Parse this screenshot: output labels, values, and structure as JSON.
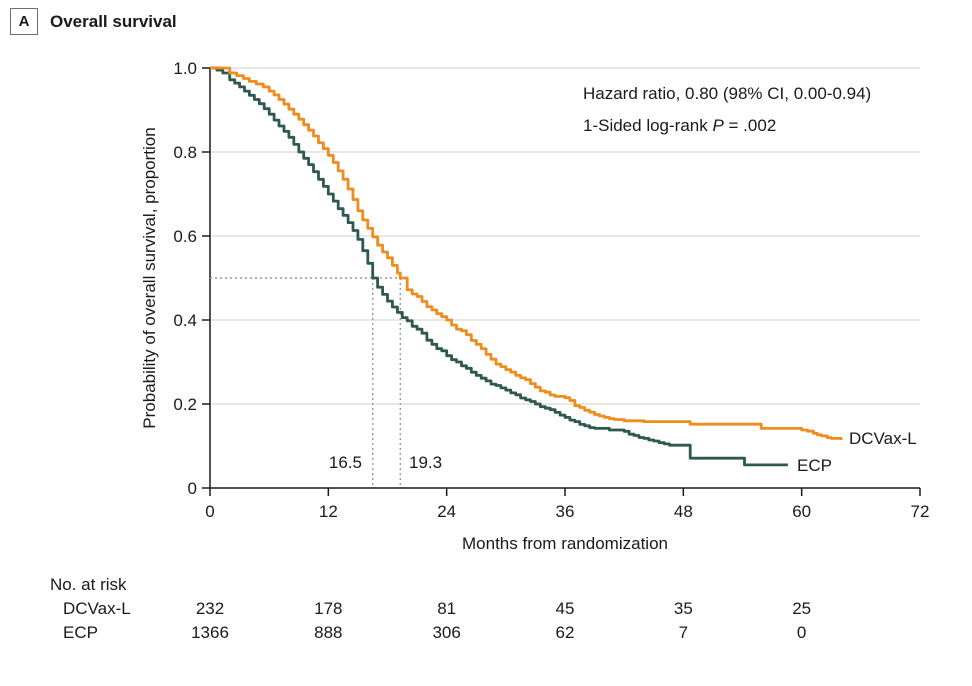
{
  "panel": {
    "label": "A",
    "title": "Overall survival"
  },
  "annotations": {
    "hazard_ratio": "Hazard ratio, 0.80 (98% CI, 0.00-0.94)",
    "logrank_prefix": "1-Sided log-rank ",
    "logrank_italic": "P",
    "logrank_suffix": " = .002"
  },
  "colors": {
    "dcvax": "#F08C1E",
    "ecp": "#2F5850",
    "grid": "#D9D9D9",
    "axis": "#1A1A1A",
    "dotted": "#999999"
  },
  "chart_data": {
    "type": "line",
    "subtype": "kaplan-meier-step",
    "title": "Overall survival",
    "xlabel": "Months from randomization",
    "ylabel": "Probability of overall survival, proportion",
    "xlim": [
      0,
      72
    ],
    "ylim": [
      0,
      1.0
    ],
    "x_ticks": [
      0,
      12,
      24,
      36,
      48,
      60,
      72
    ],
    "y_ticks": [
      0,
      0.2,
      0.4,
      0.6,
      0.8,
      1.0
    ],
    "y_tick_labels": [
      "0",
      "0.2",
      "0.4",
      "0.6",
      "0.8",
      "1.0"
    ],
    "grid": "horizontal",
    "legend_position": "end-of-curve labels",
    "median_guides": {
      "y": 0.5,
      "medians": [
        {
          "series": "ECP",
          "x": 16.5,
          "label": "16.5",
          "color": "#2F5850"
        },
        {
          "series": "DCVax-L",
          "x": 19.3,
          "label": "19.3",
          "color": "#F08C1E"
        }
      ]
    },
    "series": [
      {
        "name": "ECP",
        "end_label": "ECP",
        "color": "#2F5850",
        "median_months": 16.5,
        "anchors": [
          [
            0,
            1.0
          ],
          [
            0.7,
            0.995
          ],
          [
            1.3,
            0.988
          ],
          [
            2,
            0.972
          ],
          [
            2.5,
            0.964
          ],
          [
            3,
            0.955
          ],
          [
            3.5,
            0.945
          ],
          [
            4,
            0.935
          ],
          [
            4.5,
            0.925
          ],
          [
            5,
            0.915
          ],
          [
            5.5,
            0.903
          ],
          [
            6,
            0.89
          ],
          [
            6.5,
            0.876
          ],
          [
            7,
            0.862
          ],
          [
            7.5,
            0.849
          ],
          [
            8,
            0.835
          ],
          [
            8.5,
            0.818
          ],
          [
            9,
            0.8
          ],
          [
            9.5,
            0.785
          ],
          [
            10,
            0.77
          ],
          [
            10.5,
            0.753
          ],
          [
            11,
            0.735
          ],
          [
            11.5,
            0.718
          ],
          [
            12,
            0.7
          ],
          [
            12.5,
            0.683
          ],
          [
            13,
            0.665
          ],
          [
            13.5,
            0.649
          ],
          [
            14,
            0.632
          ],
          [
            14.5,
            0.613
          ],
          [
            15,
            0.592
          ],
          [
            15.5,
            0.565
          ],
          [
            16,
            0.535
          ],
          [
            16.5,
            0.5
          ],
          [
            17,
            0.478
          ],
          [
            17.5,
            0.461
          ],
          [
            18,
            0.445
          ],
          [
            18.5,
            0.431
          ],
          [
            19,
            0.418
          ],
          [
            20,
            0.398
          ],
          [
            21,
            0.378
          ],
          [
            22,
            0.352
          ],
          [
            23,
            0.332
          ],
          [
            24,
            0.315
          ],
          [
            25,
            0.3
          ],
          [
            26,
            0.285
          ],
          [
            27,
            0.268
          ],
          [
            28,
            0.255
          ],
          [
            29,
            0.244
          ],
          [
            30,
            0.233
          ],
          [
            31,
            0.222
          ],
          [
            32,
            0.21
          ],
          [
            33,
            0.2
          ],
          [
            34,
            0.19
          ],
          [
            35,
            0.18
          ],
          [
            36,
            0.168
          ],
          [
            37,
            0.158
          ],
          [
            38,
            0.148
          ],
          [
            39,
            0.142
          ],
          [
            40.5,
            0.138
          ],
          [
            42,
            0.135
          ],
          [
            43,
            0.125
          ],
          [
            44,
            0.118
          ],
          [
            45,
            0.112
          ],
          [
            46.6,
            0.102
          ],
          [
            48.5,
            0.102
          ],
          [
            48.7,
            0.071
          ],
          [
            54.0,
            0.071
          ],
          [
            54.2,
            0.055
          ],
          [
            58.6,
            0.055
          ]
        ]
      },
      {
        "name": "DCVax-L",
        "end_label": "DCVax-L",
        "color": "#F08C1E",
        "median_months": 19.3,
        "anchors": [
          [
            0,
            1.0
          ],
          [
            1.6,
            1.0
          ],
          [
            2,
            0.988
          ],
          [
            2.7,
            0.982
          ],
          [
            3.4,
            0.975
          ],
          [
            4,
            0.968
          ],
          [
            4.7,
            0.962
          ],
          [
            5.4,
            0.955
          ],
          [
            6,
            0.945
          ],
          [
            6.5,
            0.936
          ],
          [
            7,
            0.925
          ],
          [
            7.5,
            0.914
          ],
          [
            8,
            0.902
          ],
          [
            8.5,
            0.89
          ],
          [
            9,
            0.878
          ],
          [
            9.5,
            0.865
          ],
          [
            10,
            0.852
          ],
          [
            10.5,
            0.838
          ],
          [
            11,
            0.822
          ],
          [
            11.5,
            0.808
          ],
          [
            12,
            0.792
          ],
          [
            12.5,
            0.775
          ],
          [
            13,
            0.755
          ],
          [
            13.5,
            0.735
          ],
          [
            14,
            0.712
          ],
          [
            14.5,
            0.687
          ],
          [
            15,
            0.66
          ],
          [
            15.5,
            0.638
          ],
          [
            16,
            0.618
          ],
          [
            16.5,
            0.598
          ],
          [
            17,
            0.578
          ],
          [
            17.5,
            0.562
          ],
          [
            18,
            0.548
          ],
          [
            18.5,
            0.53
          ],
          [
            19,
            0.512
          ],
          [
            19.3,
            0.5
          ],
          [
            20,
            0.472
          ],
          [
            20.5,
            0.462
          ],
          [
            21,
            0.456
          ],
          [
            21.5,
            0.444
          ],
          [
            22,
            0.432
          ],
          [
            22.5,
            0.424
          ],
          [
            23,
            0.415
          ],
          [
            23.5,
            0.408
          ],
          [
            24,
            0.4
          ],
          [
            24.5,
            0.388
          ],
          [
            25,
            0.378
          ],
          [
            26,
            0.365
          ],
          [
            27,
            0.342
          ],
          [
            28,
            0.318
          ],
          [
            29,
            0.295
          ],
          [
            30,
            0.282
          ],
          [
            31,
            0.268
          ],
          [
            32,
            0.258
          ],
          [
            33,
            0.24
          ],
          [
            34,
            0.228
          ],
          [
            35,
            0.218
          ],
          [
            36,
            0.215
          ],
          [
            37,
            0.196
          ],
          [
            38,
            0.185
          ],
          [
            39,
            0.175
          ],
          [
            40,
            0.168
          ],
          [
            41,
            0.163
          ],
          [
            42,
            0.16
          ],
          [
            44,
            0.158
          ],
          [
            48.4,
            0.158
          ],
          [
            48.7,
            0.152
          ],
          [
            55.6,
            0.152
          ],
          [
            55.9,
            0.142
          ],
          [
            59.7,
            0.142
          ],
          [
            60,
            0.138
          ],
          [
            61.2,
            0.13
          ],
          [
            62,
            0.124
          ],
          [
            62.6,
            0.12
          ],
          [
            63,
            0.118
          ],
          [
            64,
            0.114
          ]
        ]
      }
    ]
  },
  "risk_table": {
    "header": "No. at risk",
    "months": [
      0,
      12,
      24,
      36,
      48,
      60
    ],
    "rows": [
      {
        "label": "DCVax-L",
        "counts": [
          "232",
          "178",
          "81",
          "45",
          "35",
          "25"
        ]
      },
      {
        "label": "ECP",
        "counts": [
          "1366",
          "888",
          "306",
          "62",
          "7",
          "0"
        ]
      }
    ]
  }
}
